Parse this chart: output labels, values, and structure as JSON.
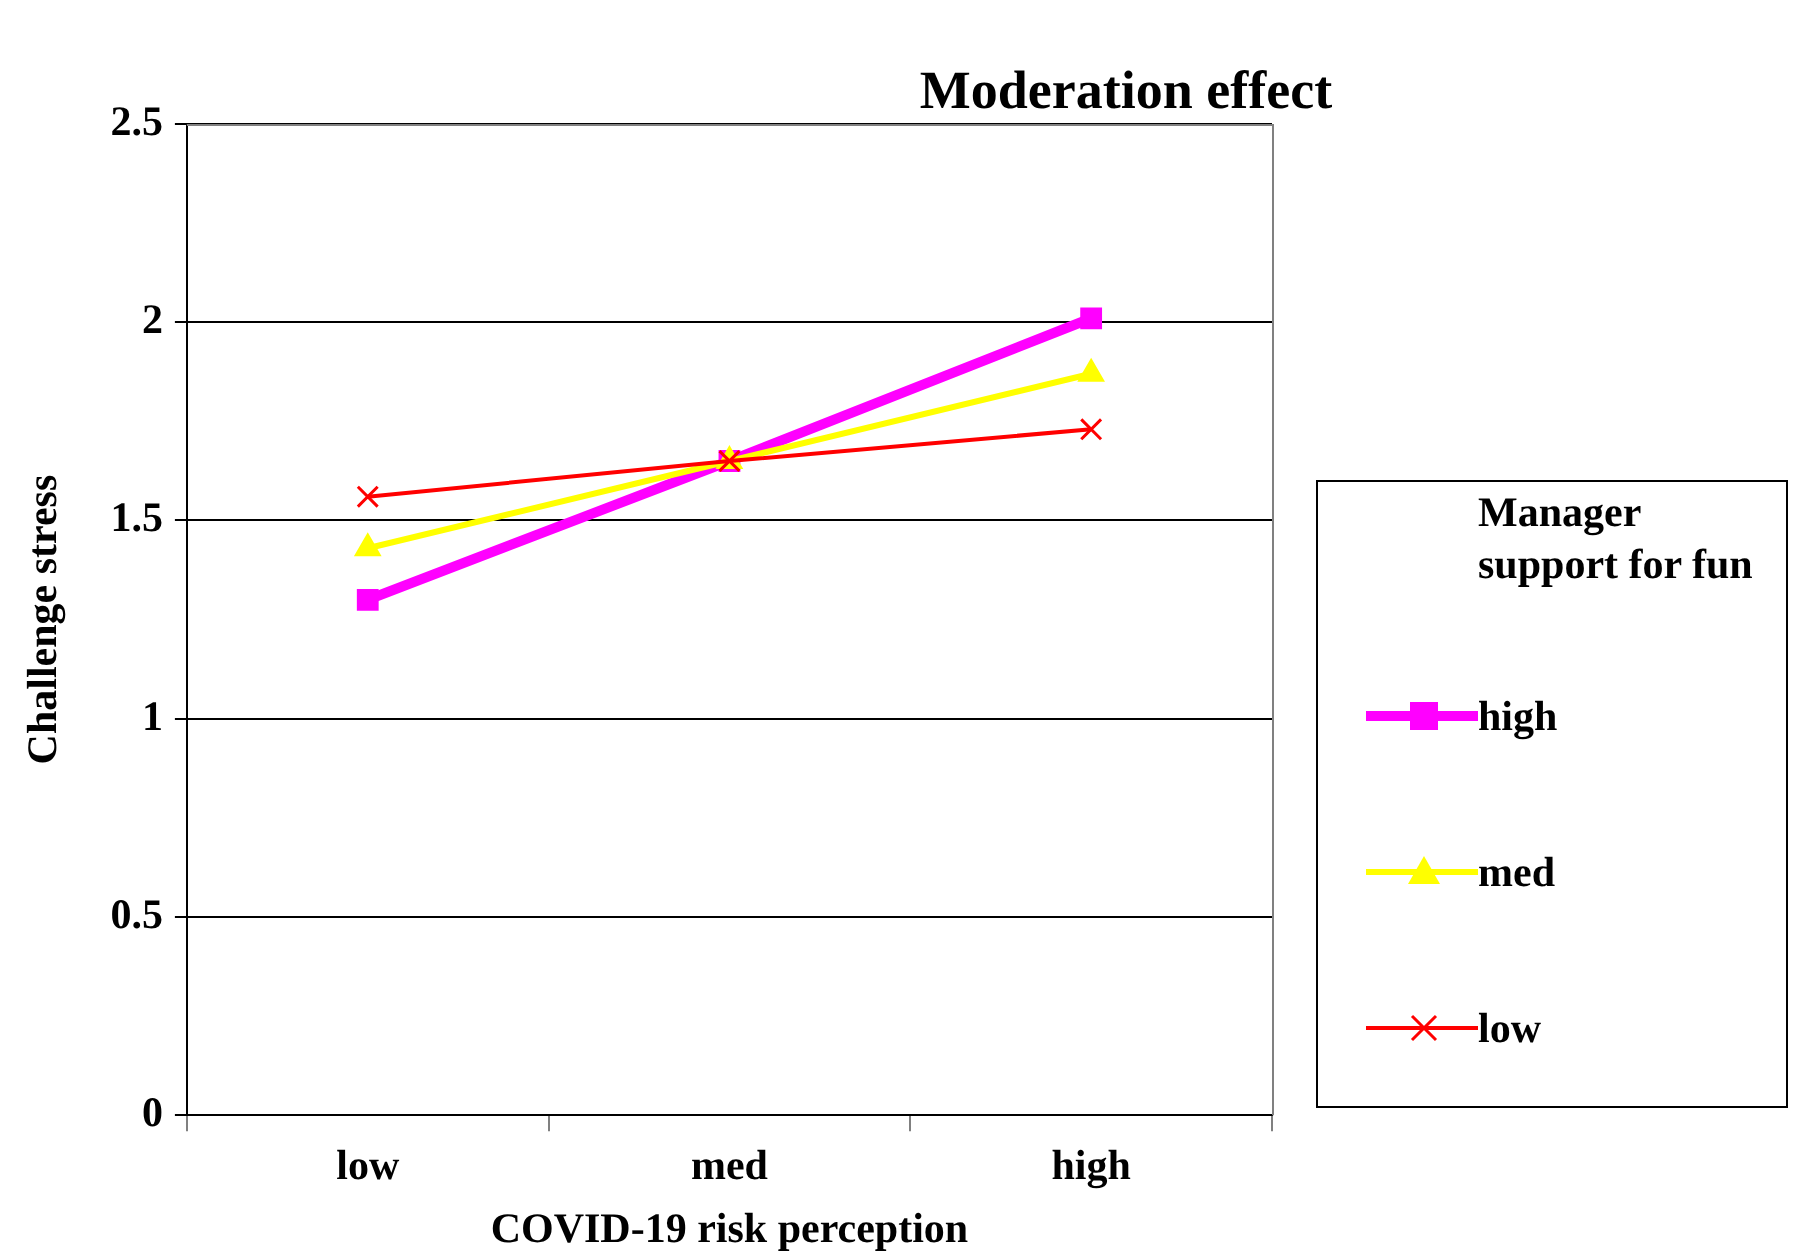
{
  "chart_data": {
    "type": "line",
    "title": "Moderation effect",
    "xlabel": "COVID-19 risk perception",
    "ylabel": "Challenge stress",
    "legend_title": "Manager support for fun",
    "categories": [
      "low",
      "med",
      "high"
    ],
    "series": [
      {
        "name": "high",
        "color": "#ff00ff",
        "values": [
          1.3,
          1.65,
          2.01
        ],
        "marker": "square"
      },
      {
        "name": "med",
        "color": "#ffff00",
        "values": [
          1.43,
          1.65,
          1.87
        ],
        "marker": "triangle"
      },
      {
        "name": "low",
        "color": "#ff0000",
        "values": [
          1.56,
          1.65,
          1.73
        ],
        "marker": "cross"
      }
    ],
    "ylim": [
      0,
      2.5
    ],
    "yticks": [
      0,
      0.5,
      1,
      1.5,
      2,
      2.5
    ],
    "grid": "y",
    "legend": "right",
    "line_style": "solid"
  }
}
